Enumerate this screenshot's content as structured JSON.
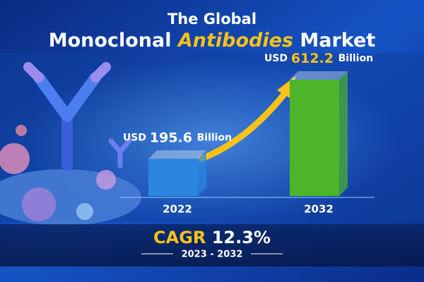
{
  "chart_data": {
    "type": "bar",
    "title_line1": "The Global",
    "title_parts": [
      "Monoclonal",
      "Antibodies",
      "Market"
    ],
    "categories": [
      "2022",
      "2032"
    ],
    "values": [
      195.6,
      612.2
    ],
    "value_labels": [
      "USD 195.6 Billion",
      "USD 612.2 Billion"
    ],
    "colors": [
      "#2a86e0",
      "#4cb52a"
    ],
    "cagr": {
      "label": "CAGR",
      "value": 12.3,
      "value_label": "12.3%",
      "period": "2023 - 2032"
    }
  }
}
